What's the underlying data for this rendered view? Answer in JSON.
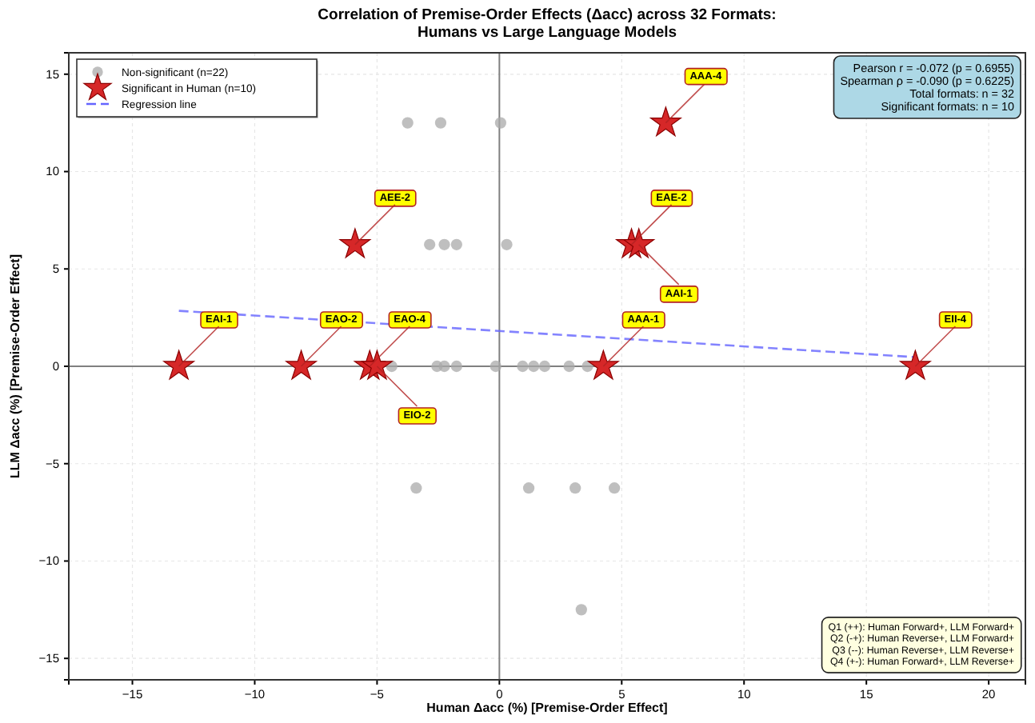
{
  "chart_data": {
    "type": "scatter",
    "title": "Correlation of Premise-Order Effects (Δacc) across 32 Formats:\nHumans vs Large Language Models",
    "xlabel": "Human Δacc (%) [Premise-Order Effect]",
    "ylabel": "LLM Δacc (%) [Premise-Order Effect]",
    "xlim": [
      -17.6,
      21.5
    ],
    "ylim": [
      -16.1,
      16.1
    ],
    "xticks": [
      -15,
      -10,
      -5,
      0,
      5,
      10,
      15,
      20
    ],
    "yticks": [
      -15,
      -10,
      -5,
      0,
      5,
      10,
      15
    ],
    "grid": true,
    "legend": "top left",
    "series": [
      {
        "name": "Non-significant (n=22)",
        "type": "scatter",
        "marker": "circle",
        "color": "#a9a9a9",
        "x": [
          -3.75,
          -2.4,
          0.05,
          -2.85,
          -2.25,
          -1.75,
          0.3,
          -4.4,
          -2.55,
          -2.25,
          -1.75,
          -0.15,
          0.95,
          1.4,
          1.85,
          2.85,
          3.6,
          -3.4,
          1.2,
          3.1,
          4.7,
          3.35
        ],
        "values": [
          12.5,
          12.5,
          12.5,
          6.25,
          6.25,
          6.25,
          6.25,
          0,
          0,
          0,
          0,
          0,
          0,
          0,
          0,
          0,
          0,
          -6.25,
          -6.25,
          -6.25,
          -6.25,
          -12.5
        ]
      },
      {
        "name": "Significant in Human (n=10)",
        "type": "scatter",
        "marker": "star",
        "color": "#d62728",
        "x": [
          6.8,
          -5.9,
          5.4,
          5.7,
          -13.1,
          -8.1,
          -5.3,
          -5.0,
          4.25,
          17.0
        ],
        "values": [
          12.5,
          6.25,
          6.25,
          6.25,
          0,
          0,
          0,
          0,
          0,
          0
        ]
      },
      {
        "name": "Regression line",
        "type": "line",
        "marker": "none",
        "line_style": "dashed",
        "color": "#6464ff",
        "x": [
          -13.1,
          17.0
        ],
        "values": [
          2.85,
          0.47
        ]
      }
    ],
    "annotations": [
      {
        "text": "AAA-4",
        "x": 6.8,
        "y": 12.5
      },
      {
        "text": "AEE-2",
        "x": -5.9,
        "y": 6.25
      },
      {
        "text": "EAE-2",
        "x": 5.4,
        "y": 6.25
      },
      {
        "text": "AAI-1",
        "x": 5.7,
        "y": 6.25
      },
      {
        "text": "EAI-1",
        "x": -13.1,
        "y": 0
      },
      {
        "text": "EAO-2",
        "x": -8.1,
        "y": 0
      },
      {
        "text": "EAO-4",
        "x": -5.3,
        "y": 0
      },
      {
        "text": "EIO-2",
        "x": -5.0,
        "y": 0
      },
      {
        "text": "AAA-1",
        "x": 4.25,
        "y": 0
      },
      {
        "text": "EII-4",
        "x": 17.0,
        "y": 0
      },
      "Pearson r = -0.072 (p = 0.6955)\nSpearman ρ = -0.090 (p = 0.6225)\nTotal formats: n = 32\nSignificant formats: n = 10",
      "Q1 (++): Human Forward+, LLM Forward+\nQ2 (-+): Human Reverse+, LLM Forward+\nQ3 (--): Human Reverse+, LLM Reverse+\nQ4 (+-): Human Forward+, LLM Reverse+"
    ]
  }
}
